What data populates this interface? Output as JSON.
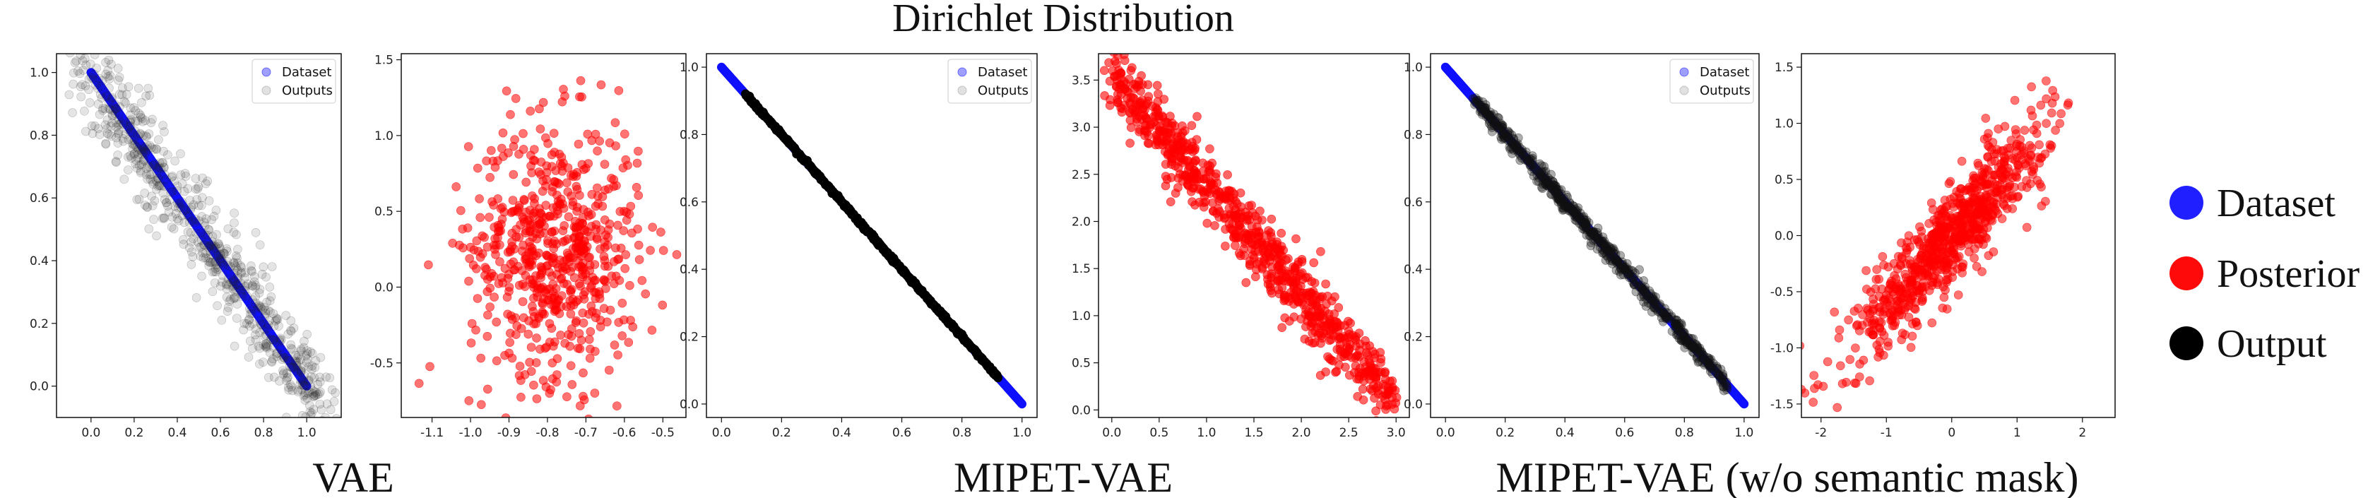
{
  "figure_title": "Dirichlet Distribution",
  "captions": [
    "VAE",
    "MIPET-VAE",
    "MIPET-VAE (w/o semantic mask)"
  ],
  "figure_legend": [
    {
      "label": "Dataset",
      "color": "#1f1fff"
    },
    {
      "label": "Posterior",
      "color": "#ff0a0a"
    },
    {
      "label": "Output",
      "color": "#000000"
    }
  ],
  "colors": {
    "dataset": "#1010ff",
    "posterior": "#ff0000",
    "output": "#000000",
    "outputs_gray": "#9a9a9a"
  },
  "chart_data": [
    {
      "id": "vae-data-space",
      "type": "scatter",
      "x_ticks": [
        "0.0",
        "0.2",
        "0.4",
        "0.6",
        "0.8",
        "1.0"
      ],
      "y_ticks": [
        "0.0",
        "0.2",
        "0.4",
        "0.6",
        "0.8",
        "1.0"
      ],
      "xlim": [
        -0.16,
        1.16
      ],
      "ylim": [
        -0.1,
        1.06
      ],
      "legend": [
        "Dataset",
        "Outputs"
      ],
      "series": [
        {
          "name": "Dataset",
          "kind": "line_dense",
          "x_range": [
            0.0,
            1.0
          ],
          "slope": -1,
          "intercept": 1,
          "noise": 0.0,
          "n": 500,
          "color": "#1010ff"
        },
        {
          "name": "Outputs",
          "kind": "cloud_along_line",
          "x_range": [
            -0.05,
            1.1
          ],
          "slope": -1,
          "intercept": 1,
          "noise": 0.07,
          "n": 700,
          "color": "#222222",
          "opacity": 0.12
        }
      ]
    },
    {
      "id": "vae-latent",
      "type": "scatter",
      "x_ticks": [
        "-1.1",
        "-1.0",
        "-0.9",
        "-0.8",
        "-0.7",
        "-0.6",
        "-0.5"
      ],
      "y_ticks": [
        "-0.5",
        "0.0",
        "0.5",
        "1.0",
        "1.5"
      ],
      "xlim": [
        -1.18,
        -0.44
      ],
      "ylim": [
        -0.86,
        1.54
      ],
      "series": [
        {
          "name": "Posterior",
          "kind": "gaussian_cloud",
          "mean": [
            -0.78,
            0.25
          ],
          "std": [
            0.11,
            0.42
          ],
          "n": 650,
          "color": "#ff0000",
          "opacity": 0.55
        }
      ]
    },
    {
      "id": "mipet-data-space",
      "type": "scatter",
      "x_ticks": [
        "0.0",
        "0.2",
        "0.4",
        "0.6",
        "0.8",
        "1.0"
      ],
      "y_ticks": [
        "0.0",
        "0.2",
        "0.4",
        "0.6",
        "0.8",
        "1.0"
      ],
      "xlim": [
        -0.05,
        1.05
      ],
      "ylim": [
        -0.04,
        1.04
      ],
      "legend": [
        "Dataset",
        "Outputs"
      ],
      "series": [
        {
          "name": "Dataset",
          "kind": "line_dense",
          "x_range": [
            0.0,
            1.0
          ],
          "slope": -1,
          "intercept": 1,
          "noise": 0.0,
          "n": 500,
          "color": "#1010ff"
        },
        {
          "name": "Outputs",
          "kind": "line_dense",
          "x_range": [
            0.08,
            0.92
          ],
          "slope": -1,
          "intercept": 1,
          "noise": 0.003,
          "n": 500,
          "color": "#000000"
        }
      ]
    },
    {
      "id": "mipet-latent",
      "type": "scatter",
      "x_ticks": [
        "0.0",
        "0.5",
        "1.0",
        "1.5",
        "2.0",
        "2.5",
        "3.0"
      ],
      "y_ticks": [
        "0.0",
        "0.5",
        "1.0",
        "1.5",
        "2.0",
        "2.5",
        "3.0",
        "3.5"
      ],
      "xlim": [
        -0.14,
        3.14
      ],
      "ylim": [
        -0.08,
        3.78
      ],
      "series": [
        {
          "name": "Posterior",
          "kind": "cloud_along_line",
          "x_range": [
            0.0,
            2.95
          ],
          "slope": -1.17,
          "intercept": 3.55,
          "noise": 0.15,
          "n": 800,
          "color": "#ff0000",
          "opacity": 0.6
        }
      ]
    },
    {
      "id": "mipet-womask-data-space",
      "type": "scatter",
      "x_ticks": [
        "0.0",
        "0.2",
        "0.4",
        "0.6",
        "0.8",
        "1.0"
      ],
      "y_ticks": [
        "0.0",
        "0.2",
        "0.4",
        "0.6",
        "0.8",
        "1.0"
      ],
      "xlim": [
        -0.05,
        1.05
      ],
      "ylim": [
        -0.04,
        1.04
      ],
      "legend": [
        "Dataset",
        "Outputs"
      ],
      "series": [
        {
          "name": "Dataset",
          "kind": "line_dense",
          "x_range": [
            0.0,
            1.0
          ],
          "slope": -1,
          "intercept": 1,
          "noise": 0.0,
          "n": 500,
          "color": "#1010ff"
        },
        {
          "name": "Outputs",
          "kind": "cloud_along_line",
          "x_range": [
            0.1,
            0.95
          ],
          "slope": -1,
          "intercept": 1,
          "noise": 0.012,
          "n": 600,
          "color": "#111111",
          "opacity": 0.35
        }
      ]
    },
    {
      "id": "mipet-womask-latent",
      "type": "scatter",
      "x_ticks": [
        "-2",
        "-1",
        "0",
        "1",
        "2"
      ],
      "y_ticks": [
        "-1.5",
        "-1.0",
        "-0.5",
        "0.0",
        "0.5",
        "1.0",
        "1.5"
      ],
      "xlim": [
        -2.3,
        2.5
      ],
      "ylim": [
        -1.62,
        1.62
      ],
      "series": [
        {
          "name": "Posterior",
          "kind": "correlated_cloud",
          "mean": [
            0.0,
            0.0
          ],
          "std": [
            0.72,
            0.5
          ],
          "corr": 0.9,
          "n": 800,
          "color": "#ff0000",
          "opacity": 0.55
        }
      ]
    }
  ]
}
